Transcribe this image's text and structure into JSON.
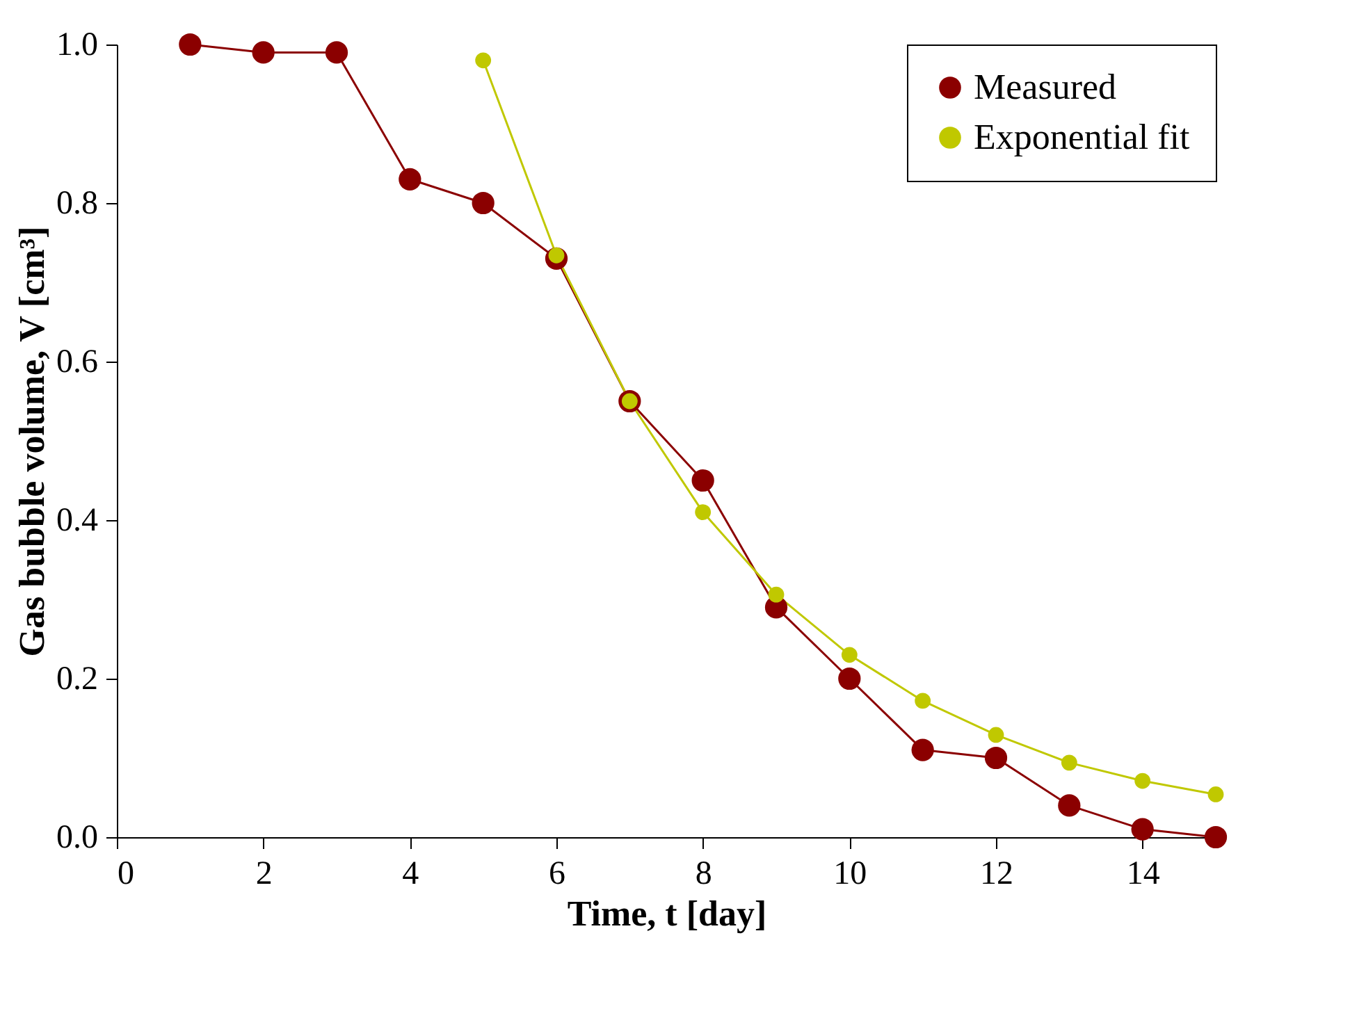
{
  "chart_data": {
    "type": "line",
    "xlabel": "Time, t [day]",
    "ylabel": "Gas bubble volume, V [cm³]",
    "xlim": [
      0,
      15
    ],
    "xticks": [
      0,
      2,
      4,
      6,
      8,
      10,
      12,
      14
    ],
    "ylim": [
      0,
      1.0
    ],
    "yticks": [
      {
        "value": 0,
        "label": "0.0"
      },
      0.2,
      0.4,
      0.6,
      0.8,
      {
        "value": 1,
        "label": "1.0"
      }
    ],
    "grid": false,
    "legend": "top right",
    "marker": "circle",
    "line_style": "solid",
    "series": [
      {
        "name": "Measured",
        "color": "#8b0000",
        "x": [
          1,
          2,
          3,
          4,
          5,
          6,
          7,
          8,
          9,
          10,
          11,
          12,
          13,
          14,
          15
        ],
        "values": [
          1.0,
          0.99,
          0.99,
          0.83,
          0.8,
          0.73,
          0.55,
          0.45,
          0.29,
          0.2,
          0.11,
          0.1,
          0.04,
          0.01,
          0.0
        ]
      },
      {
        "name": "Exponential fit",
        "color": "#c0c800",
        "x": [
          5,
          6,
          7,
          8,
          9,
          10,
          11,
          12,
          13,
          14,
          15
        ],
        "values": [
          0.98,
          0.734,
          0.55,
          0.41,
          0.306,
          0.23,
          0.172,
          0.129,
          0.094,
          0.071,
          0.054
        ]
      }
    ]
  }
}
